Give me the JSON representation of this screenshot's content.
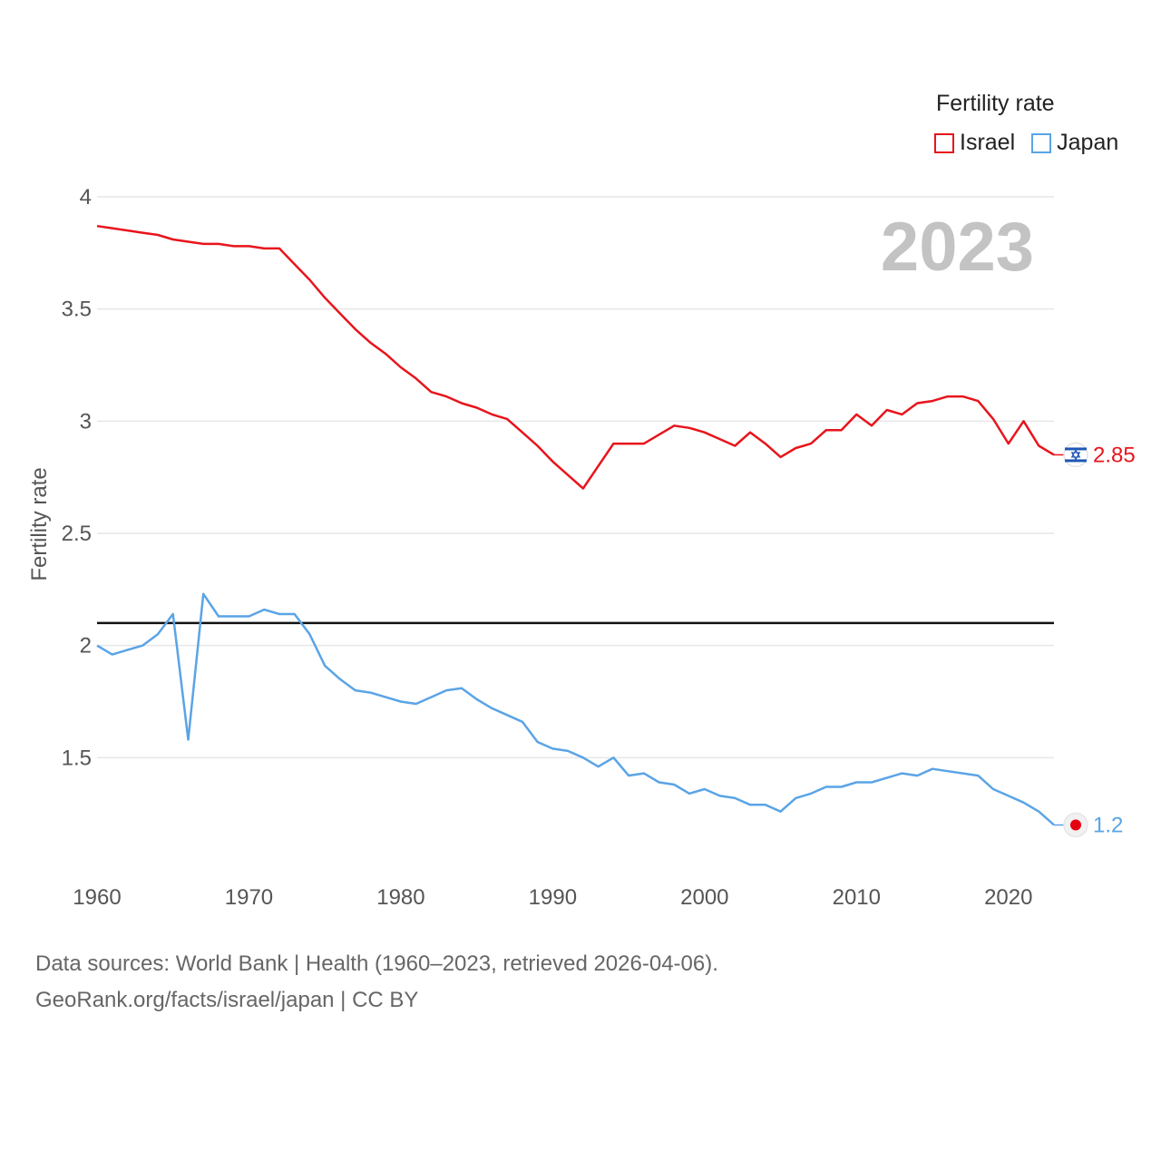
{
  "legend": {
    "title": "Fertility rate",
    "items": [
      {
        "label": "Israel",
        "color": "#e8141c"
      },
      {
        "label": "Japan",
        "color": "#5aa4e6"
      }
    ]
  },
  "footer": {
    "line1": "Data sources: World Bank | Health (1960–2023, retrieved 2026-04-06).",
    "line2": "GeoRank.org/facts/israel/japan | CC BY"
  },
  "chart_data": {
    "type": "line",
    "ylabel": "Fertility rate",
    "xlabel": "",
    "year_watermark": "2023",
    "xlim": [
      1960,
      2023
    ],
    "ylim": [
      1.0,
      4.0
    ],
    "x_ticks": [
      1960,
      1970,
      1980,
      1990,
      2000,
      2010,
      2020
    ],
    "y_ticks": [
      1.5,
      2,
      2.5,
      3,
      3.5,
      4
    ],
    "y_tick_labels": [
      "1.5",
      "2",
      "2.5",
      "3",
      "3.5",
      "4"
    ],
    "reference_line": 2.1,
    "grid": true,
    "x": [
      1960,
      1961,
      1962,
      1963,
      1964,
      1965,
      1966,
      1967,
      1968,
      1969,
      1970,
      1971,
      1972,
      1973,
      1974,
      1975,
      1976,
      1977,
      1978,
      1979,
      1980,
      1981,
      1982,
      1983,
      1984,
      1985,
      1986,
      1987,
      1988,
      1989,
      1990,
      1991,
      1992,
      1993,
      1994,
      1995,
      1996,
      1997,
      1998,
      1999,
      2000,
      2001,
      2002,
      2003,
      2004,
      2005,
      2006,
      2007,
      2008,
      2009,
      2010,
      2011,
      2012,
      2013,
      2014,
      2015,
      2016,
      2017,
      2018,
      2019,
      2020,
      2021,
      2022,
      2023
    ],
    "series": [
      {
        "name": "Israel",
        "color": "#e8141c",
        "end_label": "2.85",
        "end_marker": "israel-flag",
        "values": [
          3.87,
          3.86,
          3.85,
          3.84,
          3.83,
          3.81,
          3.8,
          3.79,
          3.79,
          3.78,
          3.78,
          3.77,
          3.77,
          3.7,
          3.63,
          3.55,
          3.48,
          3.41,
          3.35,
          3.3,
          3.24,
          3.19,
          3.13,
          3.11,
          3.08,
          3.06,
          3.03,
          3.01,
          2.95,
          2.89,
          2.82,
          2.76,
          2.7,
          2.8,
          2.9,
          2.9,
          2.9,
          2.94,
          2.98,
          2.97,
          2.95,
          2.92,
          2.89,
          2.95,
          2.9,
          2.84,
          2.88,
          2.9,
          2.96,
          2.96,
          3.03,
          2.98,
          3.05,
          3.03,
          3.08,
          3.09,
          3.11,
          3.11,
          3.09,
          3.01,
          2.9,
          3.0,
          2.89,
          2.85
        ]
      },
      {
        "name": "Japan",
        "color": "#5aa4e6",
        "end_label": "1.2",
        "end_marker": "japan-flag",
        "values": [
          2.0,
          1.96,
          1.98,
          2.0,
          2.05,
          2.14,
          1.58,
          2.23,
          2.13,
          2.13,
          2.13,
          2.16,
          2.14,
          2.14,
          2.05,
          1.91,
          1.85,
          1.8,
          1.79,
          1.77,
          1.75,
          1.74,
          1.77,
          1.8,
          1.81,
          1.76,
          1.72,
          1.69,
          1.66,
          1.57,
          1.54,
          1.53,
          1.5,
          1.46,
          1.5,
          1.42,
          1.43,
          1.39,
          1.38,
          1.34,
          1.36,
          1.33,
          1.32,
          1.29,
          1.29,
          1.26,
          1.32,
          1.34,
          1.37,
          1.37,
          1.39,
          1.39,
          1.41,
          1.43,
          1.42,
          1.45,
          1.44,
          1.43,
          1.42,
          1.36,
          1.33,
          1.3,
          1.26,
          1.2
        ]
      }
    ]
  }
}
